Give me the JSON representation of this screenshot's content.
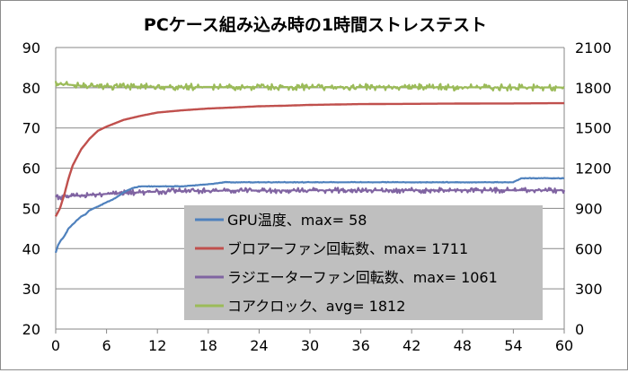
{
  "chart_data": {
    "type": "line",
    "title": "PCケース組み込み時の1時間ストレステスト",
    "xlabel": "",
    "ylabel_left": "",
    "ylabel_right": "",
    "x_ticks": [
      "0",
      "6",
      "12",
      "18",
      "24",
      "30",
      "36",
      "42",
      "48",
      "54",
      "60"
    ],
    "y_left_ticks": [
      "20",
      "30",
      "40",
      "50",
      "60",
      "70",
      "80",
      "90"
    ],
    "y_right_ticks": [
      "0",
      "300",
      "600",
      "900",
      "1200",
      "1500",
      "1800",
      "2100"
    ],
    "xlim": [
      0,
      60
    ],
    "ylim_left": [
      20,
      90
    ],
    "ylim_right": [
      0,
      2100
    ],
    "grid": "horizontal",
    "legend_position": "inside-bottom-center",
    "series": [
      {
        "name": "GPU温度、max= 58",
        "axis": "left",
        "color": "#4f81bd",
        "x": [
          0,
          0.3,
          0.6,
          1,
          1.5,
          2,
          2.5,
          3,
          3.5,
          4,
          5,
          6,
          7,
          8,
          9,
          10,
          12,
          15,
          18,
          20,
          24,
          30,
          36,
          42,
          48,
          54,
          55,
          60
        ],
        "y": [
          39,
          41,
          42,
          43,
          45,
          46,
          47,
          48,
          48.5,
          49.5,
          50.5,
          51.5,
          52.5,
          54,
          55,
          55.5,
          55.5,
          55.5,
          56,
          56.5,
          56.5,
          56.5,
          56.5,
          56.5,
          56.5,
          56.5,
          57.5,
          57.5
        ]
      },
      {
        "name": "ブロアーファン回転数、max=  1711",
        "axis": "right",
        "color": "#c0504d",
        "x": [
          0,
          0.5,
          1,
          1.5,
          2,
          3,
          4,
          5,
          6,
          7,
          8,
          10,
          12,
          15,
          18,
          21,
          24,
          27,
          30,
          36,
          42,
          48,
          54,
          60
        ],
        "y": [
          840,
          900,
          1000,
          1120,
          1220,
          1340,
          1420,
          1480,
          1510,
          1535,
          1560,
          1590,
          1615,
          1632,
          1645,
          1653,
          1662,
          1666,
          1672,
          1678,
          1680,
          1682,
          1683,
          1685
        ]
      },
      {
        "name": "ラジエーターファン回転数、max=  1061",
        "axis": "right",
        "color": "#8064a2",
        "x": [
          0,
          2,
          4,
          6,
          8,
          10,
          12,
          15,
          20,
          30,
          40,
          50,
          60
        ],
        "y": [
          985,
          992,
          1000,
          1008,
          1015,
          1020,
          1025,
          1030,
          1032,
          1035,
          1035,
          1035,
          1035
        ]
      },
      {
        "name": "コアクロック、avg= 1812",
        "axis": "right",
        "color": "#9bbb59",
        "x": [
          0,
          1,
          3,
          5,
          10,
          20,
          30,
          40,
          50,
          60
        ],
        "y": [
          1830,
          1825,
          1815,
          1810,
          1808,
          1805,
          1805,
          1805,
          1803,
          1802
        ]
      }
    ]
  }
}
